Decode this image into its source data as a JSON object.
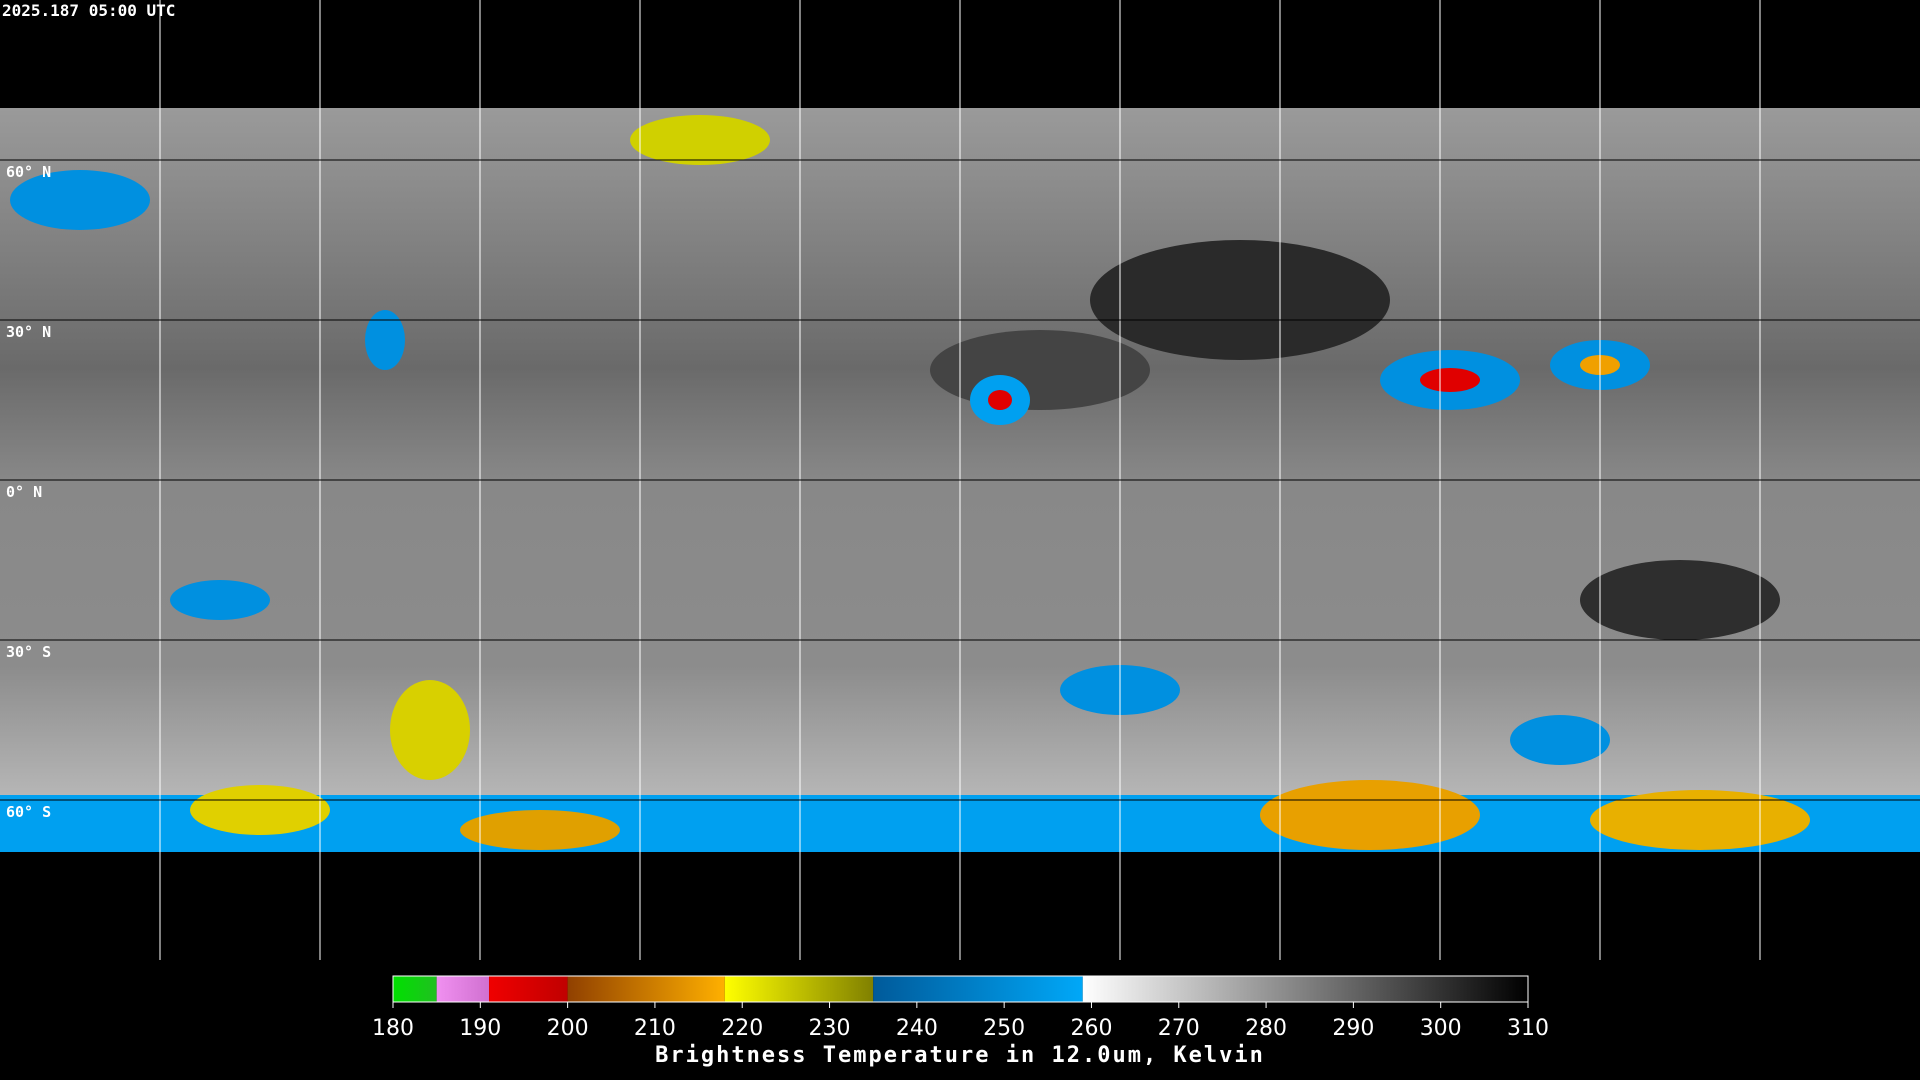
{
  "header": {
    "timestamp": "2025.187 05:00 UTC"
  },
  "map": {
    "lonlim": [
      -180,
      180
    ],
    "latlim": [
      -90,
      90
    ],
    "lonticks": [
      -150,
      -120,
      -90,
      -60,
      -30,
      0,
      30,
      60,
      90,
      120,
      150
    ],
    "latticks": [
      {
        "value": 60,
        "label": "60° N"
      },
      {
        "value": 30,
        "label": "30° N"
      },
      {
        "value": 0,
        "label": "0° N"
      },
      {
        "value": -30,
        "label": "30° S"
      },
      {
        "value": -60,
        "label": "60° S"
      }
    ]
  },
  "colorbar": {
    "title": "Brightness Temperature in 12.0um, Kelvin",
    "lim": [
      180,
      310
    ],
    "ticks": [
      180,
      190,
      200,
      210,
      220,
      230,
      240,
      250,
      260,
      270,
      280,
      290,
      300,
      310
    ],
    "segments": [
      {
        "from": 180,
        "to": 185,
        "colors": [
          "#00e000",
          "#20c020"
        ]
      },
      {
        "from": 185,
        "to": 191,
        "colors": [
          "#f090f0",
          "#d070d0"
        ]
      },
      {
        "from": 191,
        "to": 200,
        "colors": [
          "#f00000",
          "#c00000"
        ]
      },
      {
        "from": 200,
        "to": 218,
        "colors": [
          "#904000",
          "#ffb000"
        ]
      },
      {
        "from": 218,
        "to": 235,
        "colors": [
          "#ffff00",
          "#808000"
        ]
      },
      {
        "from": 235,
        "to": 259,
        "colors": [
          "#005a9a",
          "#00a8f8"
        ]
      },
      {
        "from": 259,
        "to": 310,
        "colors": [
          "#ffffff",
          "#000000"
        ]
      }
    ]
  }
}
